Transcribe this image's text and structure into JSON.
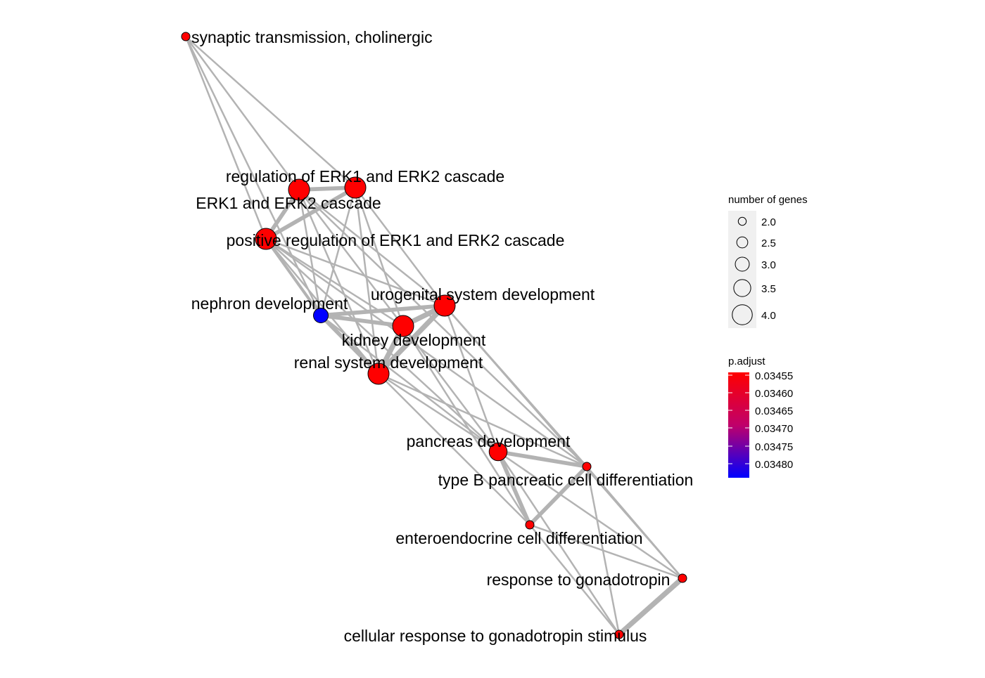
{
  "network": {
    "nodes": [
      {
        "id": "syn",
        "label": "synaptic transmission, cholinergic",
        "genes": 2,
        "p_adjust": 0.03455
      },
      {
        "id": "rerk",
        "label": "regulation of ERK1 and ERK2 cascade",
        "genes": 4,
        "p_adjust": 0.03455
      },
      {
        "id": "erk",
        "label": "ERK1 and ERK2 cascade",
        "genes": 4,
        "p_adjust": 0.03455
      },
      {
        "id": "perk",
        "label": "positive regulation of ERK1 and ERK2 cascade",
        "genes": 4,
        "p_adjust": 0.03455
      },
      {
        "id": "neph",
        "label": "nephron development",
        "genes": 3,
        "p_adjust": 0.03482
      },
      {
        "id": "uro",
        "label": "urogenital system development",
        "genes": 4,
        "p_adjust": 0.03455
      },
      {
        "id": "kid",
        "label": "kidney development",
        "genes": 4,
        "p_adjust": 0.03455
      },
      {
        "id": "ren",
        "label": "renal system development",
        "genes": 4,
        "p_adjust": 0.03455
      },
      {
        "id": "pan",
        "label": "pancreas development",
        "genes": 3.5,
        "p_adjust": 0.03455
      },
      {
        "id": "typeb",
        "label": "type B pancreatic cell differentiation",
        "genes": 2,
        "p_adjust": 0.03455
      },
      {
        "id": "ent",
        "label": "enteroendocrine cell differentiation",
        "genes": 2,
        "p_adjust": 0.03455
      },
      {
        "id": "gon",
        "label": "response to gonadotropin",
        "genes": 2,
        "p_adjust": 0.03455
      },
      {
        "id": "cgon",
        "label": "cellular response to gonadotropin stimulus",
        "genes": 2,
        "p_adjust": 0.03455
      }
    ],
    "edges": [
      {
        "source": "syn",
        "target": "erk",
        "weight": 1
      },
      {
        "source": "syn",
        "target": "rerk",
        "weight": 1
      },
      {
        "source": "syn",
        "target": "perk",
        "weight": 1
      },
      {
        "source": "syn",
        "target": "neph",
        "weight": 1
      },
      {
        "source": "rerk",
        "target": "erk",
        "weight": 3
      },
      {
        "source": "erk",
        "target": "perk",
        "weight": 3
      },
      {
        "source": "rerk",
        "target": "perk",
        "weight": 3
      },
      {
        "source": "rerk",
        "target": "neph",
        "weight": 1
      },
      {
        "source": "rerk",
        "target": "uro",
        "weight": 1
      },
      {
        "source": "rerk",
        "target": "kid",
        "weight": 1
      },
      {
        "source": "rerk",
        "target": "ren",
        "weight": 1
      },
      {
        "source": "erk",
        "target": "neph",
        "weight": 1
      },
      {
        "source": "erk",
        "target": "uro",
        "weight": 1
      },
      {
        "source": "erk",
        "target": "kid",
        "weight": 1
      },
      {
        "source": "erk",
        "target": "ren",
        "weight": 1
      },
      {
        "source": "perk",
        "target": "neph",
        "weight": 2
      },
      {
        "source": "perk",
        "target": "uro",
        "weight": 1
      },
      {
        "source": "perk",
        "target": "kid",
        "weight": 1
      },
      {
        "source": "perk",
        "target": "ren",
        "weight": 1
      },
      {
        "source": "perk",
        "target": "pan",
        "weight": 1
      },
      {
        "source": "perk",
        "target": "typeb",
        "weight": 1
      },
      {
        "source": "erk",
        "target": "typeb",
        "weight": 1
      },
      {
        "source": "neph",
        "target": "uro",
        "weight": 3
      },
      {
        "source": "neph",
        "target": "kid",
        "weight": 3
      },
      {
        "source": "neph",
        "target": "ren",
        "weight": 3
      },
      {
        "source": "uro",
        "target": "kid",
        "weight": 4
      },
      {
        "source": "uro",
        "target": "ren",
        "weight": 4
      },
      {
        "source": "kid",
        "target": "ren",
        "weight": 4
      },
      {
        "source": "uro",
        "target": "pan",
        "weight": 1
      },
      {
        "source": "uro",
        "target": "typeb",
        "weight": 1
      },
      {
        "source": "uro",
        "target": "gon",
        "weight": 1
      },
      {
        "source": "kid",
        "target": "pan",
        "weight": 1
      },
      {
        "source": "kid",
        "target": "ent",
        "weight": 1
      },
      {
        "source": "ren",
        "target": "pan",
        "weight": 1
      },
      {
        "source": "ren",
        "target": "typeb",
        "weight": 1
      },
      {
        "source": "ren",
        "target": "ent",
        "weight": 1
      },
      {
        "source": "neph",
        "target": "pan",
        "weight": 1
      },
      {
        "source": "pan",
        "target": "typeb",
        "weight": 3
      },
      {
        "source": "pan",
        "target": "ent",
        "weight": 3
      },
      {
        "source": "typeb",
        "target": "ent",
        "weight": 3
      },
      {
        "source": "pan",
        "target": "gon",
        "weight": 1
      },
      {
        "source": "pan",
        "target": "cgon",
        "weight": 1
      },
      {
        "source": "typeb",
        "target": "gon",
        "weight": 1
      },
      {
        "source": "typeb",
        "target": "cgon",
        "weight": 1
      },
      {
        "source": "ent",
        "target": "gon",
        "weight": 1
      },
      {
        "source": "ent",
        "target": "cgon",
        "weight": 1
      },
      {
        "source": "gon",
        "target": "cgon",
        "weight": 4
      }
    ]
  },
  "legend_size": {
    "title": "number of genes",
    "entries": [
      {
        "label": "2.0",
        "value": 2.0
      },
      {
        "label": "2.5",
        "value": 2.5
      },
      {
        "label": "3.0",
        "value": 3.0
      },
      {
        "label": "3.5",
        "value": 3.5
      },
      {
        "label": "4.0",
        "value": 4.0
      }
    ]
  },
  "legend_color": {
    "title": "p.adjust",
    "ticks": [
      "0.03455",
      "0.03460",
      "0.03465",
      "0.03470",
      "0.03475",
      "0.03480"
    ],
    "low_color": "#FF0000",
    "high_color": "#0000FF"
  },
  "colors": {
    "edge": "#B3B3B3",
    "node_border": "#000000",
    "legend_bg": "#F0F0F0"
  }
}
